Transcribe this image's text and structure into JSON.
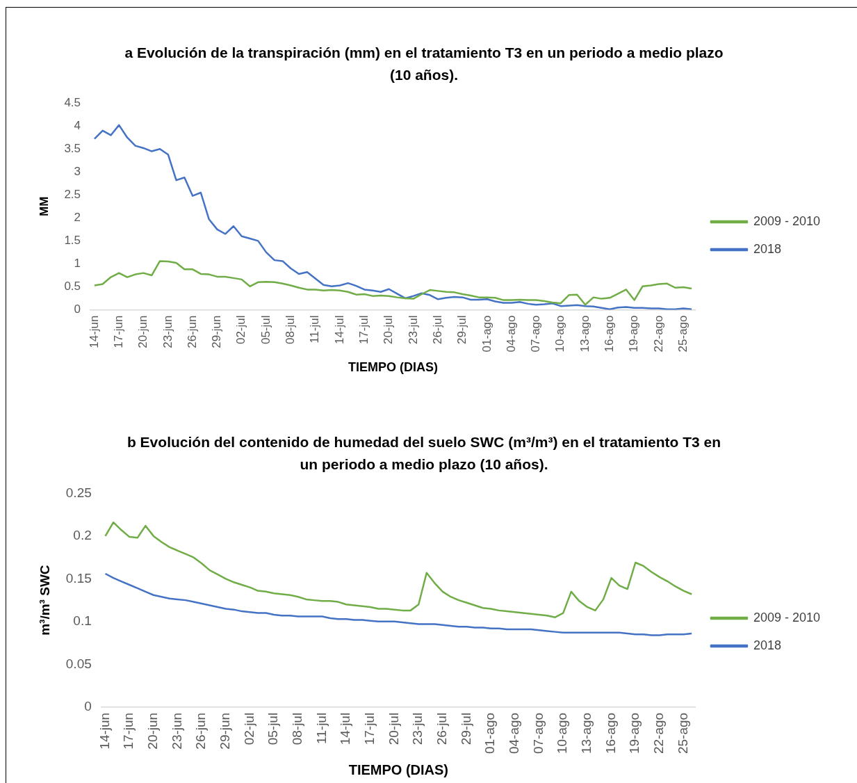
{
  "chart_data": [
    {
      "type": "line",
      "title": "a Evolución de la transpiración (mm) en el tratamiento T3 en un periodo a medio plazo (10 años).",
      "xlabel": "TIEMPO (DIAS)",
      "ylabel": "MM",
      "categories": [
        "14-jun",
        null,
        null,
        "17-jun",
        null,
        null,
        "20-jun",
        null,
        null,
        "23-jun",
        null,
        null,
        "26-jun",
        null,
        null,
        "29-jun",
        null,
        null,
        "02-jul",
        null,
        null,
        "05-jul",
        null,
        null,
        "08-jul",
        null,
        null,
        "11-jul",
        null,
        null,
        "14-jul",
        null,
        null,
        "17-jul",
        null,
        null,
        "20-jul",
        null,
        null,
        "23-jul",
        null,
        null,
        "26-jul",
        null,
        null,
        "29-jul",
        null,
        null,
        "01-ago",
        null,
        null,
        "04-ago",
        null,
        null,
        "07-ago",
        null,
        null,
        "10-ago",
        null,
        null,
        "13-ago",
        null,
        null,
        "16-ago",
        null,
        null,
        "19-ago",
        null,
        null,
        "22-ago",
        null,
        null,
        "25-ago",
        null
      ],
      "series": [
        {
          "name": "2009 - 2010",
          "color": "#70ad47",
          "values": [
            0.53,
            0.56,
            0.71,
            0.8,
            0.71,
            0.77,
            0.8,
            0.75,
            1.06,
            1.05,
            1.02,
            0.88,
            0.88,
            0.78,
            0.77,
            0.72,
            0.72,
            0.69,
            0.66,
            0.51,
            0.6,
            0.61,
            0.6,
            0.57,
            0.53,
            0.48,
            0.44,
            0.44,
            0.42,
            0.43,
            0.42,
            0.39,
            0.33,
            0.34,
            0.3,
            0.31,
            0.3,
            0.27,
            0.25,
            0.24,
            0.34,
            0.43,
            0.41,
            0.39,
            0.38,
            0.34,
            0.31,
            0.27,
            0.27,
            0.26,
            0.21,
            0.21,
            0.22,
            0.21,
            0.21,
            0.19,
            0.16,
            0.14,
            0.32,
            0.33,
            0.11,
            0.27,
            0.24,
            0.26,
            0.35,
            0.44,
            0.21,
            0.51,
            0.53,
            0.56,
            0.57,
            0.48,
            0.49,
            0.46
          ]
        },
        {
          "name": "2018",
          "color": "#4472c4",
          "values": [
            3.72,
            3.9,
            3.8,
            4.02,
            3.75,
            3.57,
            3.52,
            3.45,
            3.5,
            3.38,
            2.82,
            2.88,
            2.48,
            2.55,
            1.97,
            1.75,
            1.65,
            1.82,
            1.6,
            1.55,
            1.5,
            1.25,
            1.08,
            1.06,
            0.9,
            0.78,
            0.82,
            0.68,
            0.54,
            0.51,
            0.53,
            0.58,
            0.52,
            0.44,
            0.42,
            0.39,
            0.45,
            0.35,
            0.25,
            0.3,
            0.36,
            0.32,
            0.23,
            0.26,
            0.28,
            0.27,
            0.22,
            0.22,
            0.23,
            0.18,
            0.15,
            0.15,
            0.17,
            0.13,
            0.11,
            0.12,
            0.14,
            0.08,
            0.09,
            0.1,
            0.08,
            0.07,
            0.04,
            0.01,
            0.05,
            0.06,
            0.04,
            0.04,
            0.03,
            0.03,
            0.01,
            0.01,
            0.03,
            0.01
          ]
        }
      ],
      "ylim": [
        0,
        4.5
      ],
      "yticks": [
        0,
        0.5,
        1,
        1.5,
        2,
        2.5,
        3,
        3.5,
        4,
        4.5
      ],
      "grid": false,
      "legend": "right"
    },
    {
      "type": "line",
      "title": "b Evolución del contenido de humedad del suelo SWC (m³/m³) en el tratamiento T3 en un periodo a medio plazo (10 años).",
      "xlabel": "TIEMPO (DIAS)",
      "ylabel": "m³/m³ SWC",
      "categories": [
        "14-jun",
        null,
        null,
        "17-jun",
        null,
        null,
        "20-jun",
        null,
        null,
        "23-jun",
        null,
        null,
        "26-jun",
        null,
        null,
        "29-jun",
        null,
        null,
        "02-jul",
        null,
        null,
        "05-jul",
        null,
        null,
        "08-jul",
        null,
        null,
        "11-jul",
        null,
        null,
        "14-jul",
        null,
        null,
        "17-jul",
        null,
        null,
        "20-jul",
        null,
        null,
        "23-jul",
        null,
        null,
        "26-jul",
        null,
        null,
        "29-jul",
        null,
        null,
        "01-ago",
        null,
        null,
        "04-ago",
        null,
        null,
        "07-ago",
        null,
        null,
        "10-ago",
        null,
        null,
        "13-ago",
        null,
        null,
        "16-ago",
        null,
        null,
        "19-ago",
        null,
        null,
        "22-ago",
        null,
        null,
        "25-ago",
        null
      ],
      "series": [
        {
          "name": "2009 - 2010",
          "color": "#70ad47",
          "values": [
            0.2,
            0.216,
            0.207,
            0.199,
            0.198,
            0.212,
            0.2,
            0.193,
            0.187,
            0.183,
            0.179,
            0.175,
            0.168,
            0.16,
            0.155,
            0.15,
            0.146,
            0.143,
            0.14,
            0.136,
            0.135,
            0.133,
            0.132,
            0.131,
            0.129,
            0.126,
            0.125,
            0.124,
            0.124,
            0.123,
            0.12,
            0.119,
            0.118,
            0.117,
            0.115,
            0.115,
            0.114,
            0.113,
            0.113,
            0.12,
            0.157,
            0.145,
            0.135,
            0.129,
            0.125,
            0.122,
            0.119,
            0.116,
            0.115,
            0.113,
            0.112,
            0.111,
            0.11,
            0.109,
            0.108,
            0.107,
            0.105,
            0.11,
            0.135,
            0.124,
            0.117,
            0.113,
            0.126,
            0.151,
            0.142,
            0.138,
            0.169,
            0.165,
            0.158,
            0.152,
            0.147,
            0.141,
            0.136,
            0.132
          ]
        },
        {
          "name": "2018",
          "color": "#4472c4",
          "values": [
            0.156,
            0.151,
            0.147,
            0.143,
            0.139,
            0.135,
            0.131,
            0.129,
            0.127,
            0.126,
            0.125,
            0.123,
            0.121,
            0.119,
            0.117,
            0.115,
            0.114,
            0.112,
            0.111,
            0.11,
            0.11,
            0.108,
            0.107,
            0.107,
            0.106,
            0.106,
            0.106,
            0.106,
            0.104,
            0.103,
            0.103,
            0.102,
            0.102,
            0.101,
            0.1,
            0.1,
            0.1,
            0.099,
            0.098,
            0.097,
            0.097,
            0.097,
            0.096,
            0.095,
            0.094,
            0.094,
            0.093,
            0.093,
            0.092,
            0.092,
            0.091,
            0.091,
            0.091,
            0.091,
            0.09,
            0.089,
            0.088,
            0.087,
            0.087,
            0.087,
            0.087,
            0.087,
            0.087,
            0.087,
            0.087,
            0.086,
            0.085,
            0.085,
            0.084,
            0.084,
            0.085,
            0.085,
            0.085,
            0.086
          ]
        }
      ],
      "ylim": [
        0,
        0.25
      ],
      "yticks": [
        0,
        0.05,
        0.1,
        0.15,
        0.2,
        0.25
      ],
      "grid": false,
      "legend": "right"
    }
  ]
}
